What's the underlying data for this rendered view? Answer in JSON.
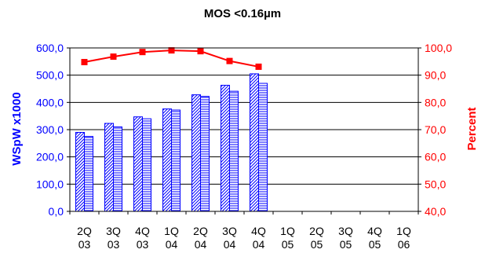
{
  "chart_data": {
    "type": "bar",
    "title": "MOS <0.16µm",
    "ylabel": "WSpW x1000",
    "y2label": "Percent",
    "categories": [
      {
        "top": "2Q",
        "bottom": "03"
      },
      {
        "top": "3Q",
        "bottom": "03"
      },
      {
        "top": "4Q",
        "bottom": "03"
      },
      {
        "top": "1Q",
        "bottom": "04"
      },
      {
        "top": "2Q",
        "bottom": "04"
      },
      {
        "top": "3Q",
        "bottom": "04"
      },
      {
        "top": "4Q",
        "bottom": "04"
      },
      {
        "top": "1Q",
        "bottom": "05"
      },
      {
        "top": "2Q",
        "bottom": "05"
      },
      {
        "top": "3Q",
        "bottom": "05"
      },
      {
        "top": "4Q",
        "bottom": "05"
      },
      {
        "top": "1Q",
        "bottom": "06"
      }
    ],
    "series": [
      {
        "kind": "bar",
        "axis": "left",
        "pattern": "diagonal-hatch",
        "color": "#0000ff",
        "values": [
          290,
          323,
          347,
          376,
          428,
          463,
          505,
          null,
          null,
          null,
          null,
          null
        ]
      },
      {
        "kind": "bar",
        "axis": "left",
        "pattern": "horizontal-hatch",
        "color": "#0000ff",
        "values": [
          275,
          310,
          340,
          372,
          422,
          441,
          470,
          null,
          null,
          null,
          null,
          null
        ]
      },
      {
        "kind": "line",
        "axis": "right",
        "marker": "square",
        "color": "#ff0000",
        "values": [
          94.8,
          96.8,
          98.5,
          99.1,
          98.8,
          95.2,
          93.1,
          null,
          null,
          null,
          null,
          null
        ]
      }
    ],
    "ylim": [
      0,
      600
    ],
    "y2lim": [
      40,
      100
    ],
    "yticks": [
      "0,0",
      "100,0",
      "200,0",
      "300,0",
      "400,0",
      "500,0",
      "600,0"
    ],
    "y2ticks": [
      "40,0",
      "50,0",
      "60,0",
      "70,0",
      "80,0",
      "90,0",
      "100,0"
    ],
    "grid": true,
    "legend": "none"
  }
}
